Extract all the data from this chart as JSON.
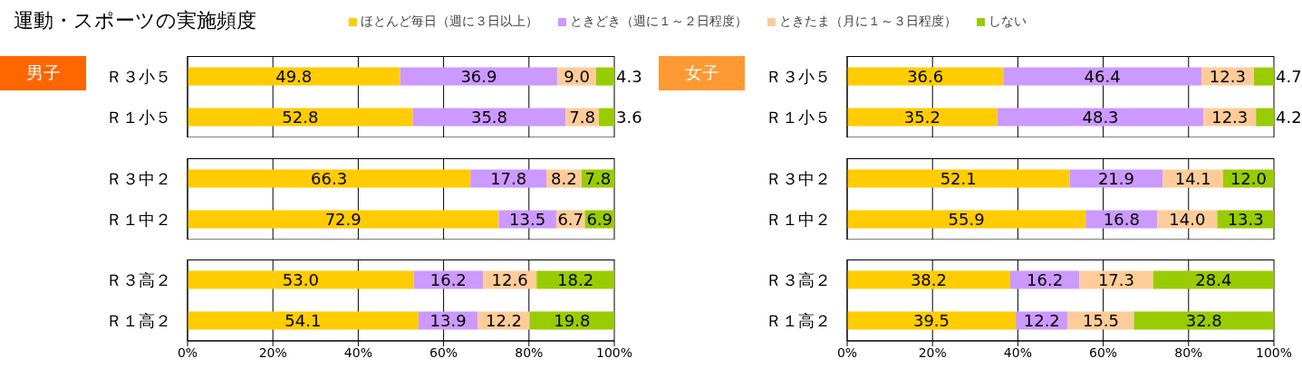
{
  "chart_data": [
    {
      "type": "bar",
      "orientation": "horizontal",
      "stacked": true,
      "title": "運動・スポーツの実施頻度",
      "subtitle": "男子",
      "legend": "top",
      "grid": "x",
      "tick_labels": "y",
      "categories": [
        "Ｒ３小５",
        "Ｒ１小５"
      ],
      "xlim": [
        0,
        100
      ],
      "xticks": [
        0,
        20,
        40,
        60,
        80,
        100
      ],
      "series": [
        {
          "name": "ほとんど毎日（週に３日以上）",
          "color": "#ffcc00",
          "values": [
            49.8,
            52.8
          ],
          "value_labels": [
            "49.8",
            "52.8"
          ]
        },
        {
          "name": "ときどき（週に１～２日程度）",
          "color": "#cc99ff",
          "values": [
            36.9,
            35.8
          ],
          "value_labels": [
            "36.9",
            "35.8"
          ]
        },
        {
          "name": "ときたま（月に１～３日程度）",
          "color": "#ffcc99",
          "values": [
            9.0,
            7.8
          ],
          "value_labels": [
            "9.0",
            "7.8"
          ]
        },
        {
          "name": "しない",
          "color": "#99cc00",
          "values": [
            4.3,
            3.6
          ],
          "value_labels": [
            "4.3",
            "3.6"
          ]
        }
      ]
    },
    {
      "type": "bar",
      "orientation": "horizontal",
      "stacked": true,
      "grid": "x",
      "tick_labels": "y",
      "categories": [
        "Ｒ３中２",
        "Ｒ１中２"
      ],
      "xlim": [
        0,
        100
      ],
      "xticks": [
        0,
        20,
        40,
        60,
        80,
        100
      ],
      "series": [
        {
          "color": "#ffcc00",
          "values": [
            66.3,
            72.9
          ],
          "value_labels": [
            "66.3",
            "72.9"
          ]
        },
        {
          "color": "#cc99ff",
          "values": [
            17.8,
            13.5
          ],
          "value_labels": [
            "17.8",
            "13.5"
          ]
        },
        {
          "color": "#ffcc99",
          "values": [
            8.2,
            6.7
          ],
          "value_labels": [
            "8.2",
            "6.7"
          ]
        },
        {
          "color": "#99cc00",
          "values": [
            7.8,
            6.9
          ],
          "value_labels": [
            "7.8",
            "6.9"
          ]
        }
      ]
    },
    {
      "type": "bar",
      "orientation": "horizontal",
      "stacked": true,
      "grid": "x",
      "categories": [
        "Ｒ３高２",
        "Ｒ１高２"
      ],
      "xlim": [
        0,
        100
      ],
      "xticks": [
        {
          "value": 0,
          "label": "0%"
        },
        {
          "value": 20,
          "label": "20%"
        },
        {
          "value": 40,
          "label": "40%"
        },
        {
          "value": 60,
          "label": "60%"
        },
        {
          "value": 80,
          "label": "80%"
        },
        {
          "value": 100,
          "label": "100%"
        }
      ],
      "series": [
        {
          "color": "#ffcc00",
          "values": [
            53.0,
            54.1
          ],
          "value_labels": [
            "53.0",
            "54.1"
          ]
        },
        {
          "color": "#cc99ff",
          "values": [
            16.2,
            13.9
          ],
          "value_labels": [
            "16.2",
            "13.9"
          ]
        },
        {
          "color": "#ffcc99",
          "values": [
            12.6,
            12.2
          ],
          "value_labels": [
            "12.6",
            "12.2"
          ]
        },
        {
          "color": "#99cc00",
          "values": [
            18.2,
            19.8
          ],
          "value_labels": [
            "18.2",
            "19.8"
          ]
        }
      ]
    },
    {
      "type": "bar",
      "orientation": "horizontal",
      "stacked": true,
      "subtitle": "女子",
      "grid": "x",
      "tick_labels": "y",
      "categories": [
        "Ｒ３小５",
        "Ｒ１小５"
      ],
      "xlim": [
        0,
        100
      ],
      "xticks": [
        0,
        20,
        40,
        60,
        80,
        100
      ],
      "series": [
        {
          "color": "#ffcc00",
          "values": [
            36.6,
            35.2
          ],
          "value_labels": [
            "36.6",
            "35.2"
          ]
        },
        {
          "color": "#cc99ff",
          "values": [
            46.4,
            48.3
          ],
          "value_labels": [
            "46.4",
            "48.3"
          ]
        },
        {
          "color": "#ffcc99",
          "values": [
            12.3,
            12.3
          ],
          "value_labels": [
            "12.3",
            "12.3"
          ]
        },
        {
          "color": "#99cc00",
          "values": [
            4.7,
            4.2
          ],
          "value_labels": [
            "4.7",
            "4.2"
          ]
        }
      ]
    },
    {
      "type": "bar",
      "orientation": "horizontal",
      "stacked": true,
      "grid": "x",
      "tick_labels": "y",
      "categories": [
        "Ｒ３中２",
        "Ｒ１中２"
      ],
      "xlim": [
        0,
        100
      ],
      "xticks": [
        0,
        20,
        40,
        60,
        80,
        100
      ],
      "series": [
        {
          "color": "#ffcc00",
          "values": [
            52.1,
            55.9
          ],
          "value_labels": [
            "52.1",
            "55.9"
          ]
        },
        {
          "color": "#cc99ff",
          "values": [
            21.9,
            16.8
          ],
          "value_labels": [
            "21.9",
            "16.8"
          ]
        },
        {
          "color": "#ffcc99",
          "values": [
            14.1,
            14.0
          ],
          "value_labels": [
            "14.1",
            "14.0"
          ]
        },
        {
          "color": "#99cc00",
          "values": [
            12.0,
            13.3
          ],
          "value_labels": [
            "12.0",
            "13.3"
          ]
        }
      ]
    },
    {
      "type": "bar",
      "orientation": "horizontal",
      "stacked": true,
      "grid": "x",
      "categories": [
        "Ｒ３高２",
        "Ｒ１高２"
      ],
      "xlim": [
        0,
        100
      ],
      "xticks": [
        {
          "value": 0,
          "label": "0%"
        },
        {
          "value": 20,
          "label": "20%"
        },
        {
          "value": 40,
          "label": "40%"
        },
        {
          "value": 60,
          "label": "60%"
        },
        {
          "value": 80,
          "label": "80%"
        },
        {
          "value": 100,
          "label": "100%"
        }
      ],
      "series": [
        {
          "color": "#ffcc00",
          "values": [
            38.2,
            39.5
          ],
          "value_labels": [
            "38.2",
            "39.5"
          ]
        },
        {
          "color": "#cc99ff",
          "values": [
            16.2,
            12.2
          ],
          "value_labels": [
            "16.2",
            "12.2"
          ]
        },
        {
          "color": "#ffcc99",
          "values": [
            17.3,
            15.5
          ],
          "value_labels": [
            "17.3",
            "15.5"
          ]
        },
        {
          "color": "#99cc00",
          "values": [
            28.4,
            32.8
          ],
          "value_labels": [
            "28.4",
            "32.8"
          ]
        }
      ]
    }
  ]
}
